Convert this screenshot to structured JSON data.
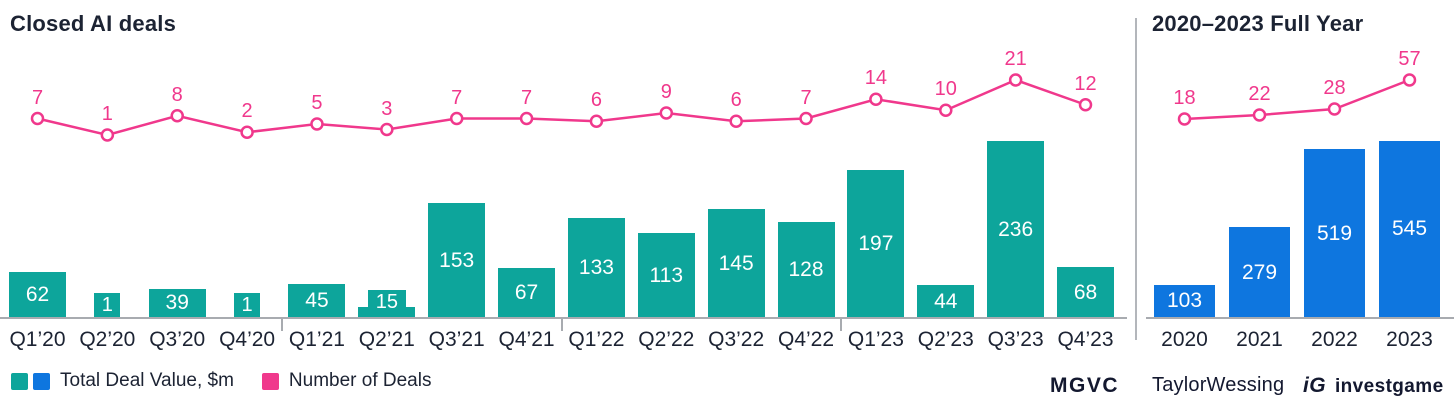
{
  "page": {
    "background": "#FFFFFF"
  },
  "chart_data": [
    {
      "type": "bar",
      "title": "Closed AI deals",
      "categories": [
        "Q1’20",
        "Q2’20",
        "Q3’20",
        "Q4’20",
        "Q1’21",
        "Q2’21",
        "Q3’21",
        "Q4’21",
        "Q1’22",
        "Q2’22",
        "Q3’22",
        "Q4’22",
        "Q1’23",
        "Q2’23",
        "Q3’23",
        "Q4’23"
      ],
      "series": [
        {
          "name": "Total Deal Value, $m",
          "type": "bar",
          "color": "#0DA59B",
          "values": [
            62,
            1,
            39,
            1,
            45,
            15,
            153,
            67,
            133,
            113,
            145,
            128,
            197,
            44,
            236,
            68
          ]
        },
        {
          "name": "Number of Deals",
          "type": "line",
          "color": "#F0388C",
          "values": [
            7,
            1,
            8,
            2,
            5,
            3,
            7,
            7,
            6,
            9,
            6,
            7,
            14,
            10,
            21,
            12
          ]
        }
      ],
      "value_labels": true,
      "grid": false,
      "y_axis_visible": false,
      "legend_position": "bottom-left"
    },
    {
      "type": "bar",
      "title": "2020–2023 Full Year",
      "categories": [
        "2020",
        "2021",
        "2022",
        "2023"
      ],
      "series": [
        {
          "name": "Total Deal Value, $m",
          "type": "bar",
          "color": "#0E76DF",
          "values": [
            103,
            279,
            519,
            545
          ]
        },
        {
          "name": "Number of Deals",
          "type": "line",
          "color": "#F0388C",
          "values": [
            18,
            22,
            28,
            57
          ]
        }
      ],
      "value_labels": true,
      "grid": false,
      "y_axis_visible": false
    }
  ],
  "legend": {
    "total_deal_value": "Total Deal Value, $m",
    "number_of_deals": "Number of Deals"
  },
  "logos": {
    "mgvc": "MGVC",
    "taylor_wessing": "TaylorWessing",
    "investgame_icon": "iG",
    "investgame": "investgame"
  },
  "colors": {
    "teal": "#0DA59B",
    "blue": "#0E76DF",
    "pink": "#F0388C",
    "axis": "#A8ABB0",
    "divider": "#B3B6BB",
    "text": "#1C2333",
    "logo": "#13182F"
  }
}
